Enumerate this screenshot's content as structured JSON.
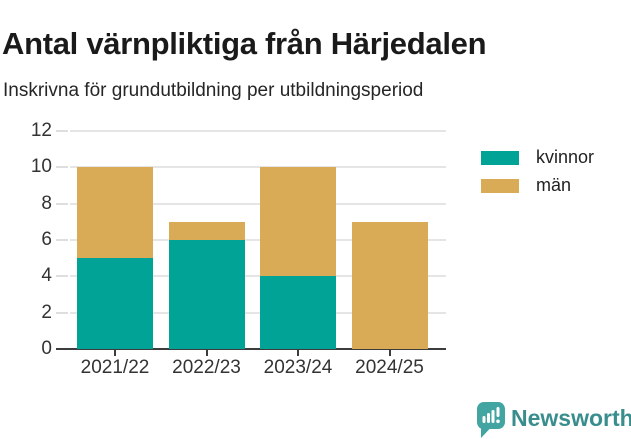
{
  "chart_data": {
    "type": "bar",
    "stacked": true,
    "title": "Antal värnpliktiga från Härjedalen",
    "subtitle": "Inskrivna för grundutbildning per utbildningsperiod",
    "categories": [
      "2021/22",
      "2022/23",
      "2023/24",
      "2024/25"
    ],
    "series": [
      {
        "name": "kvinnor",
        "color": "#00a396",
        "values": [
          5,
          6,
          4,
          0
        ]
      },
      {
        "name": "män",
        "color": "#d9ab57",
        "values": [
          5,
          1,
          6,
          7
        ]
      }
    ],
    "yticks": [
      0,
      2,
      4,
      6,
      8,
      10,
      12
    ],
    "ylim": [
      0,
      12
    ],
    "xlabel": "",
    "ylabel": "",
    "grid": true,
    "legend_position": "right"
  },
  "branding": {
    "logo_text": "Newsworthy",
    "logo_text_color": "#398d8d",
    "logo_icon": "speech-bubble-bar-chart-icon",
    "logo_icon_color": "#42a5a1"
  }
}
